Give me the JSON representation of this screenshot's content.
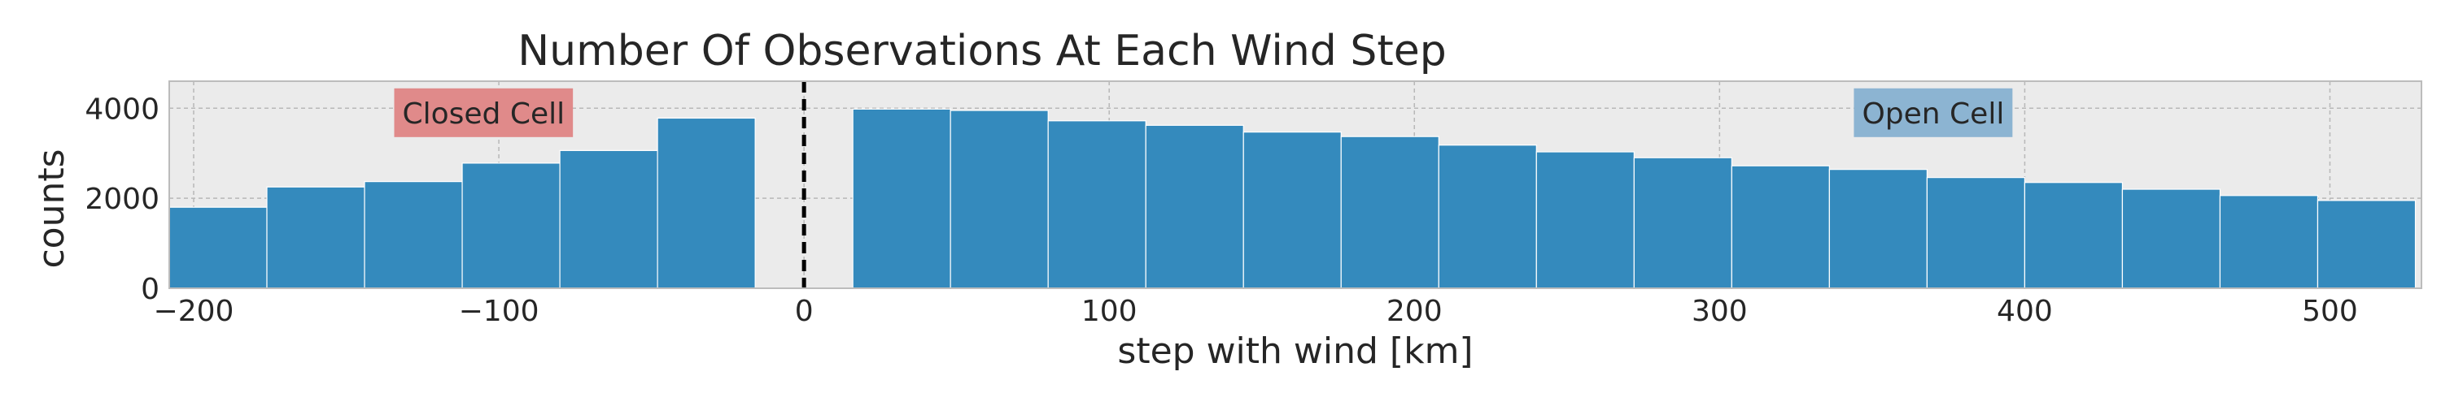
{
  "chart_data": {
    "type": "bar",
    "title": "Number Of Observations At Each Wind Step",
    "xlabel": "step with wind [km]",
    "ylabel": "counts",
    "xlim": [
      -208,
      530
    ],
    "ylim": [
      0,
      4600
    ],
    "xticks": [
      -200,
      -100,
      0,
      100,
      200,
      300,
      400,
      500
    ],
    "xtick_labels": [
      "−200",
      "−100",
      "0",
      "100",
      "200",
      "300",
      "400",
      "500"
    ],
    "yticks": [
      0,
      2000,
      4000
    ],
    "ytick_labels": [
      "0",
      "2000",
      "4000"
    ],
    "grid": true,
    "bin_width": 32,
    "bins": [
      {
        "x0": -208,
        "value": 1800
      },
      {
        "x0": -176,
        "value": 2250
      },
      {
        "x0": -144,
        "value": 2370
      },
      {
        "x0": -112,
        "value": 2780
      },
      {
        "x0": -80,
        "value": 3060
      },
      {
        "x0": -48,
        "value": 3780
      },
      {
        "x0": 16,
        "value": 3980
      },
      {
        "x0": 48,
        "value": 3950
      },
      {
        "x0": 80,
        "value": 3720
      },
      {
        "x0": 112,
        "value": 3620
      },
      {
        "x0": 144,
        "value": 3470
      },
      {
        "x0": 176,
        "value": 3370
      },
      {
        "x0": 208,
        "value": 3180
      },
      {
        "x0": 240,
        "value": 3030
      },
      {
        "x0": 272,
        "value": 2900
      },
      {
        "x0": 304,
        "value": 2720
      },
      {
        "x0": 336,
        "value": 2640
      },
      {
        "x0": 368,
        "value": 2460
      },
      {
        "x0": 400,
        "value": 2350
      },
      {
        "x0": 432,
        "value": 2200
      },
      {
        "x0": 464,
        "value": 2060
      },
      {
        "x0": 496,
        "value": 1950
      }
    ],
    "vline": {
      "x": 0,
      "style": "dashed",
      "color": "#000000"
    },
    "annotations": [
      {
        "text": "Closed Cell",
        "x": -105,
        "y": 3900,
        "bg": "#e08a8a"
      },
      {
        "text": "Open Cell",
        "x": 370,
        "y": 3900,
        "bg": "#8cb4d2"
      }
    ],
    "colors": {
      "bar": "#348abd",
      "bar_edge": "#ffffff",
      "plot_bg": "#ebebeb",
      "grid": "#b8b8b8",
      "frame": "#bcbcbc"
    }
  }
}
